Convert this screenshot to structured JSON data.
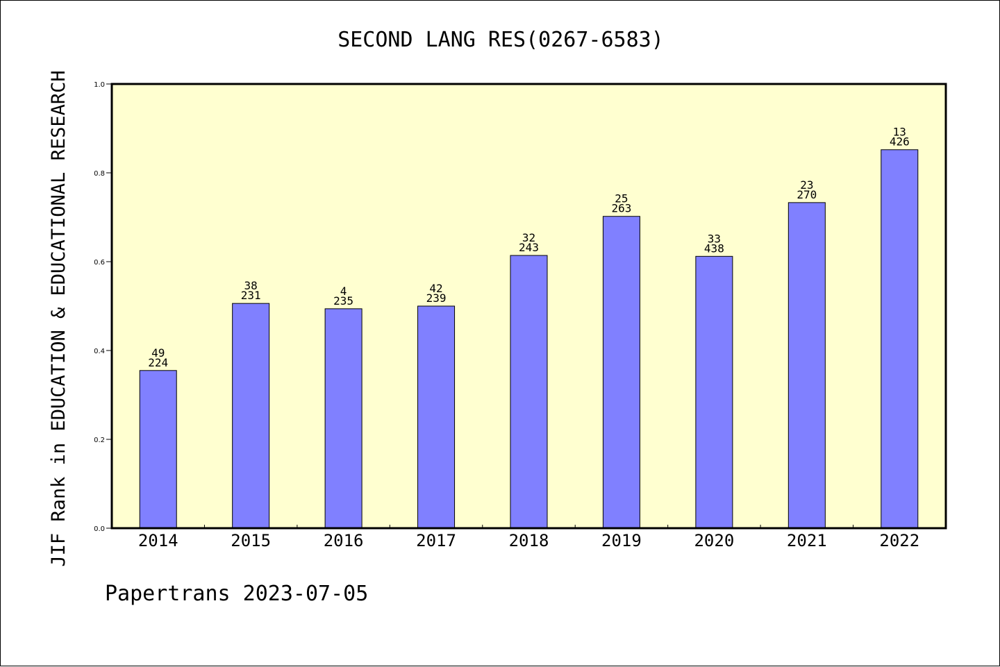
{
  "chart_data": {
    "type": "bar",
    "title": "SECOND LANG RES(0267-6583)",
    "xlabel": "",
    "ylabel": "JIF Rank in EDUCATION & EDUCATIONAL RESEARCH",
    "ylim": [
      0,
      1.0
    ],
    "yticks": [
      "0.0",
      "0.2",
      "0.4",
      "0.6",
      "0.8",
      "1.0"
    ],
    "categories": [
      "2014",
      "2015",
      "2016",
      "2017",
      "2018",
      "2019",
      "2020",
      "2021",
      "2022"
    ],
    "values": [
      0.355,
      0.506,
      0.494,
      0.5,
      0.614,
      0.702,
      0.612,
      0.733,
      0.852
    ],
    "annotations": [
      {
        "rank": "49",
        "total": "224"
      },
      {
        "rank": "38",
        "total": "231"
      },
      {
        "rank": "4",
        "total": "235"
      },
      {
        "rank": "42",
        "total": "239"
      },
      {
        "rank": "32",
        "total": "243"
      },
      {
        "rank": "25",
        "total": "263"
      },
      {
        "rank": "33",
        "total": "438"
      },
      {
        "rank": "23",
        "total": "270"
      },
      {
        "rank": "13",
        "total": "426"
      }
    ],
    "grid": false,
    "legend": "none",
    "colors": {
      "plot_background": "#ffffd0",
      "bar_fill": "#8080ff",
      "bar_edge": "#000000"
    }
  },
  "footer": "Papertrans 2023-07-05"
}
